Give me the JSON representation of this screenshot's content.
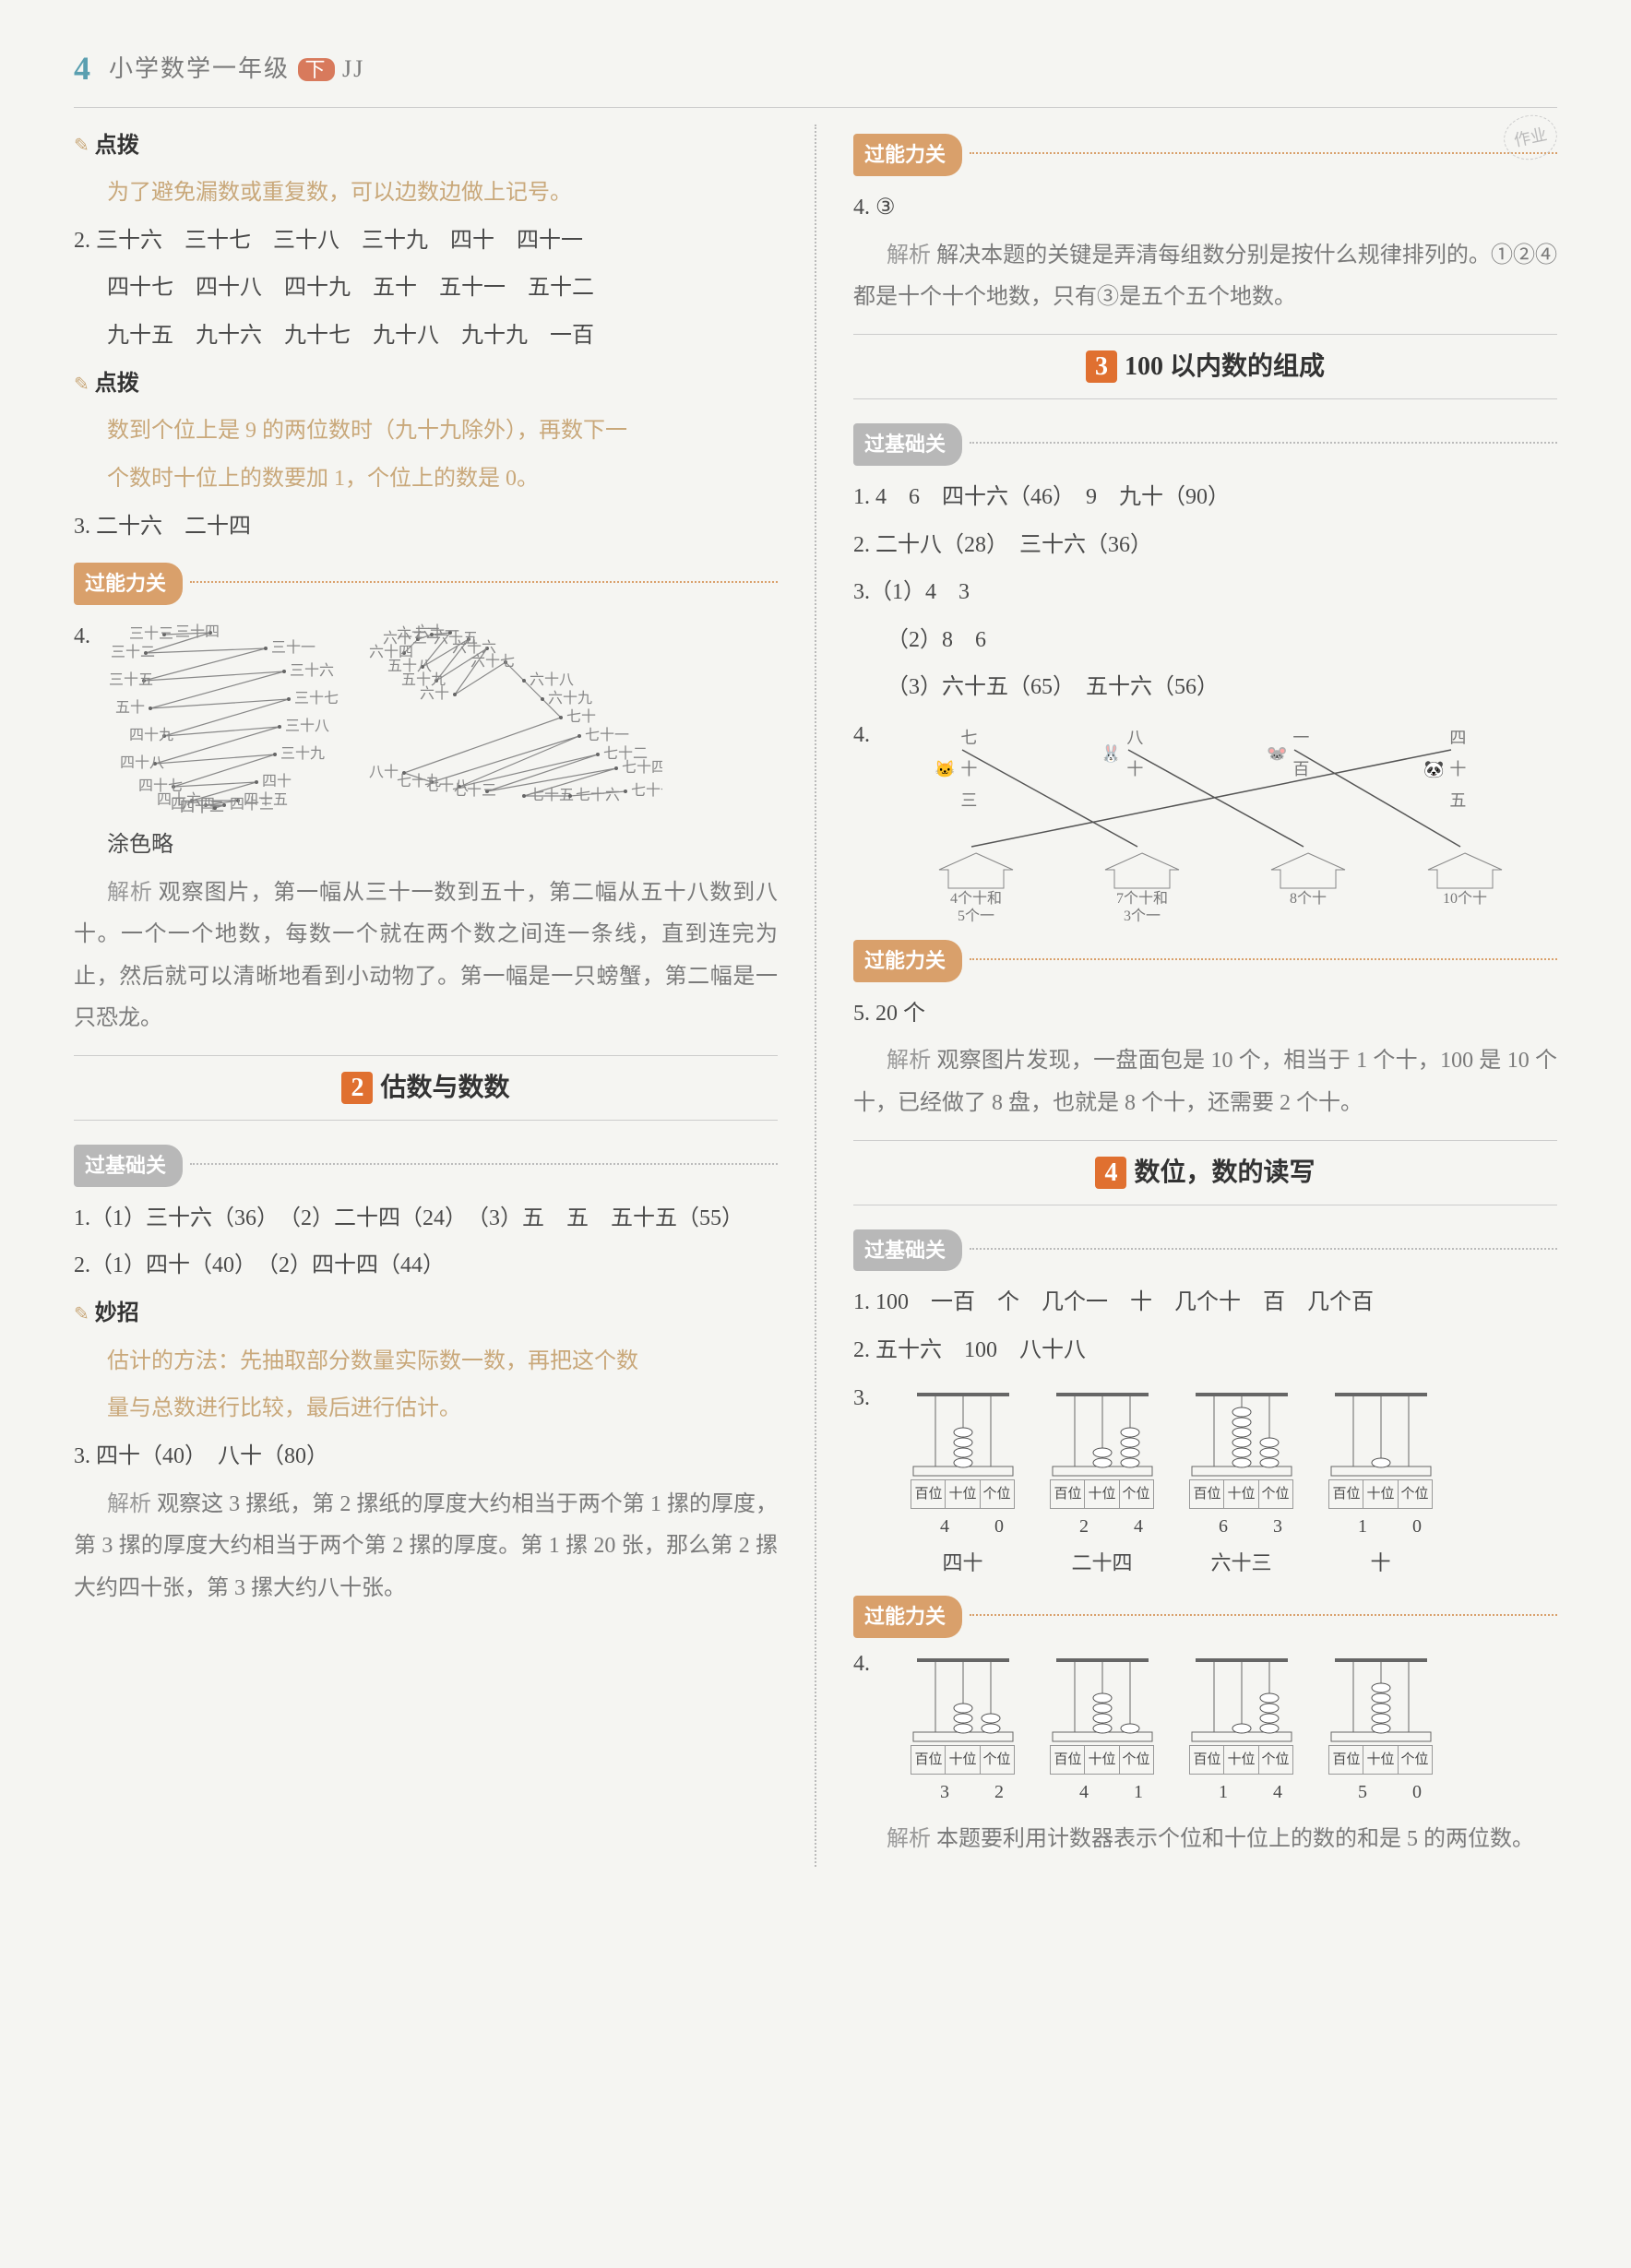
{
  "header": {
    "page_num": "4",
    "book_title": "小学数学一年级",
    "book_suffix": "JJ",
    "pill": "下"
  },
  "left": {
    "tag_dianbo": "点拨",
    "hint1": "为了避免漏数或重复数，可以边数边做上记号。",
    "q2_l1": "2. 三十六　三十七　三十八　三十九　四十　四十一",
    "q2_l2": "四十七　四十八　四十九　五十　五十一　五十二",
    "q2_l3": "九十五　九十六　九十七　九十八　九十九　一百",
    "hint2a": "数到个位上是 9 的两位数时（九十九除外），再数下一",
    "hint2b": "个数时十位上的数要加 1，个位上的数是 0。",
    "q3": "3. 二十六　二十四",
    "tag_nengli": "过能力关",
    "q4_num": "4.",
    "crab_labels": [
      "三十三",
      "三十四",
      "三十二",
      "三十一",
      "三十五",
      "三十六",
      "五十",
      "三十七",
      "四十九",
      "三十八",
      "四十八",
      "三十九",
      "四十七",
      "四十",
      "四十六",
      "四十五",
      "四十四",
      "四十三",
      "四十二",
      "四十一"
    ],
    "dino_labels": [
      "六十四",
      "六十三",
      "六十二",
      "六十一",
      "五十八",
      "六十五",
      "五十九",
      "六十六",
      "六十",
      "六十七",
      "六十八",
      "六十九",
      "七十",
      "八十",
      "七十九",
      "七十一",
      "七十八",
      "七十二",
      "七十三",
      "七十四",
      "七十五",
      "七十六",
      "七十七"
    ],
    "q4_color": "涂色略",
    "q4_ana_lbl": "解析",
    "q4_ana": "观察图片，第一幅从三十一数到五十，第二幅从五十八数到八十。一个一个地数，每数一个就在两个数之间连一条线，直到连完为止，然后就可以清晰地看到小动物了。第一幅是一只螃蟹，第二幅是一只恐龙。",
    "sec2_num": "2",
    "sec2_title": "估数与数数",
    "tag_jichu": "过基础关",
    "s2_q1": "1.（1）三十六（36）　（2）二十四（24）　（3）五　五　五十五（55）",
    "s2_q2": "2.（1）四十（40）　（2）四十四（44）",
    "tag_miaozhao": "妙招",
    "miaozhao_a": "估计的方法：先抽取部分数量实际数一数，再把这个数",
    "miaozhao_b": "量与总数进行比较，最后进行估计。",
    "s2_q3": "3. 四十（40）　八十（80）",
    "s2_q3_ana_lbl": "解析",
    "s2_q3_ana": "观察这 3 摞纸，第 2 摞纸的厚度大约相当于两个第 1 摞的厚度，第 3 摞的厚度大约相当于两个第 2 摞的厚度。第 1 摞 20 张，那么第 2 摞大约四十张，第 3 摞大约八十张。"
  },
  "right": {
    "tag_nengli": "过能力关",
    "stamp": "作业",
    "q4": "4. ③",
    "q4_ana_lbl": "解析",
    "q4_ana": "解决本题的关键是弄清每组数分别是按什么规律排列的。①②④都是十个十个地数，只有③是五个五个地数。",
    "sec3_num": "3",
    "sec3_title": "100 以内数的组成",
    "tag_jichu": "过基础关",
    "s3_q1": "1. 4　6　四十六（46）　9　九十（90）",
    "s3_q2": "2. 二十八（28）　三十六（36）",
    "s3_q3a": "3.（1）4　3",
    "s3_q3b": "（2）8　6",
    "s3_q3c": "（3）六十五（65）　五十六（56）",
    "s3_q4_num": "4.",
    "match_top": [
      {
        "icon": "🐱",
        "label": "七十三"
      },
      {
        "icon": "🐰",
        "label": "八十"
      },
      {
        "icon": "🐭",
        "label": "一百"
      },
      {
        "icon": "🐼",
        "label": "四十五"
      }
    ],
    "match_bottom": [
      {
        "l1": "4个十和",
        "l2": "5个一"
      },
      {
        "l1": "7个十和",
        "l2": "3个一"
      },
      {
        "l1": "8个十",
        "l2": ""
      },
      {
        "l1": "10个十",
        "l2": ""
      }
    ],
    "match_lines": [
      [
        0,
        1
      ],
      [
        1,
        2
      ],
      [
        2,
        3
      ],
      [
        3,
        0
      ]
    ],
    "s3_q5": "5. 20 个",
    "s3_q5_ana_lbl": "解析",
    "s3_q5_ana": "观察图片发现，一盘面包是 10 个，相当于 1 个十，100 是 10 个十，已经做了 8 盘，也就是 8 个十，还需要 2 个十。",
    "sec4_num": "4",
    "sec4_title": "数位，数的读写",
    "s4_q1": "1. 100　一百　个　几个一　十　几个十　百　几个百",
    "s4_q2": "2. 五十六　100　八十八",
    "s4_q3_num": "3.",
    "abacus3": [
      {
        "h": 0,
        "t": 4,
        "o": 0,
        "num": "4 0",
        "txt": "四十"
      },
      {
        "h": 0,
        "t": 2,
        "o": 4,
        "num": "2 4",
        "txt": "二十四"
      },
      {
        "h": 0,
        "t": 6,
        "o": 3,
        "num": "6 3",
        "txt": "六十三"
      },
      {
        "h": 0,
        "t": 1,
        "o": 0,
        "num": "1 0",
        "txt": "十"
      }
    ],
    "ab_cols": [
      "百位",
      "十位",
      "个位"
    ],
    "s4_q4_num": "4.",
    "abacus4": [
      {
        "h": 0,
        "t": 3,
        "o": 2,
        "num": "3 2"
      },
      {
        "h": 0,
        "t": 4,
        "o": 1,
        "num": "4 1"
      },
      {
        "h": 0,
        "t": 1,
        "o": 4,
        "num": "1 4"
      },
      {
        "h": 0,
        "t": 5,
        "o": 0,
        "num": "5 0"
      }
    ],
    "s4_q4_ana_lbl": "解析",
    "s4_q4_ana": "本题要利用计数器表示个位和十位上的数的和是 5 的两位数。"
  },
  "colors": {
    "tag_bg": "#d9a06b",
    "hint": "#c9a87a",
    "sec_num_bg": "#e07030",
    "line": "#888888"
  }
}
